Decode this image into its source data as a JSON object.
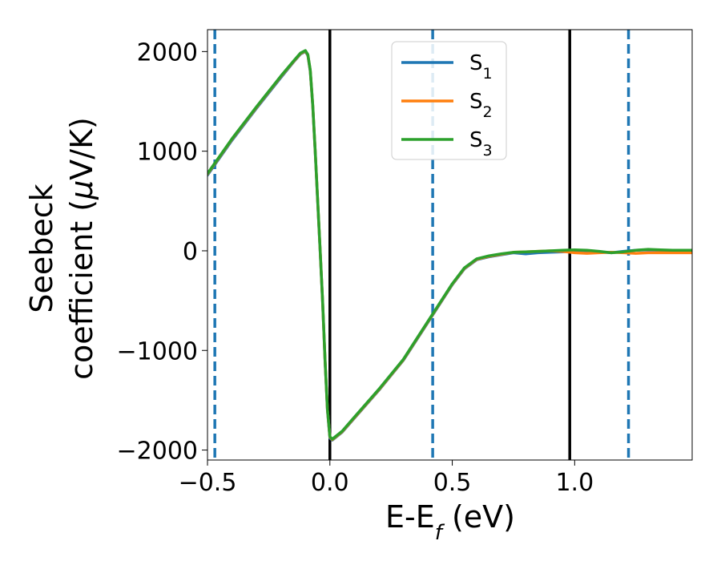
{
  "chart_data": {
    "type": "line",
    "xlabel": "E-E",
    "xlabel_sub": "f",
    "xlabel_unit": " (eV)",
    "ylabel_line1": "Seebeck",
    "ylabel_line2": "coefficient  (",
    "ylabel_mu": "μ",
    "ylabel_unit": "V/K)",
    "xlim": [
      -0.5,
      1.48
    ],
    "ylim": [
      -2100,
      2220
    ],
    "x_ticks": [
      -0.5,
      0.0,
      0.5,
      1.0
    ],
    "x_tick_labels": [
      "−0.5",
      "0.0",
      "0.5",
      "1.0"
    ],
    "y_ticks": [
      2000,
      1000,
      0,
      -1000,
      -2000
    ],
    "y_tick_labels": [
      "2000",
      "1000",
      "0",
      "−1000",
      "−2000"
    ],
    "grid": false,
    "legend_position": "top-center",
    "vertical_lines": [
      {
        "x": -0.47,
        "style": "dashed",
        "color": "#1f77b4"
      },
      {
        "x": 0.0,
        "style": "solid",
        "color": "#000000"
      },
      {
        "x": 0.42,
        "style": "dashed",
        "color": "#1f77b4"
      },
      {
        "x": 0.98,
        "style": "solid",
        "color": "#000000"
      },
      {
        "x": 1.22,
        "style": "dashed",
        "color": "#1f77b4"
      }
    ],
    "series": [
      {
        "name": "S",
        "subscript": "1",
        "color": "#1f77b4",
        "points": [
          [
            -0.5,
            760
          ],
          [
            -0.4,
            1110
          ],
          [
            -0.3,
            1430
          ],
          [
            -0.2,
            1740
          ],
          [
            -0.15,
            1890
          ],
          [
            -0.12,
            1975
          ],
          [
            -0.1,
            2000
          ],
          [
            -0.09,
            1960
          ],
          [
            -0.08,
            1800
          ],
          [
            -0.07,
            1450
          ],
          [
            -0.06,
            1000
          ],
          [
            -0.05,
            500
          ],
          [
            -0.04,
            0
          ],
          [
            -0.03,
            -500
          ],
          [
            -0.02,
            -1100
          ],
          [
            -0.01,
            -1600
          ],
          [
            0.0,
            -1880
          ],
          [
            0.01,
            -1900
          ],
          [
            0.05,
            -1820
          ],
          [
            0.1,
            -1680
          ],
          [
            0.2,
            -1400
          ],
          [
            0.3,
            -1100
          ],
          [
            0.4,
            -720
          ],
          [
            0.5,
            -340
          ],
          [
            0.55,
            -180
          ],
          [
            0.6,
            -90
          ],
          [
            0.65,
            -60
          ],
          [
            0.7,
            -40
          ],
          [
            0.75,
            -20
          ],
          [
            0.8,
            -30
          ],
          [
            0.85,
            -20
          ],
          [
            0.9,
            -15
          ],
          [
            0.95,
            -10
          ],
          [
            1.0,
            -5
          ],
          [
            1.05,
            -5
          ],
          [
            1.1,
            -10
          ],
          [
            1.15,
            -20
          ],
          [
            1.2,
            -5
          ],
          [
            1.25,
            5
          ],
          [
            1.3,
            10
          ],
          [
            1.35,
            5
          ],
          [
            1.4,
            0
          ],
          [
            1.48,
            0
          ]
        ]
      },
      {
        "name": "S",
        "subscript": "2",
        "color": "#ff7f0e",
        "points": [
          [
            -0.5,
            770
          ],
          [
            -0.4,
            1120
          ],
          [
            -0.3,
            1440
          ],
          [
            -0.2,
            1750
          ],
          [
            -0.15,
            1895
          ],
          [
            -0.12,
            1980
          ],
          [
            -0.1,
            2005
          ],
          [
            -0.09,
            1965
          ],
          [
            -0.08,
            1810
          ],
          [
            -0.07,
            1460
          ],
          [
            -0.06,
            1010
          ],
          [
            -0.05,
            510
          ],
          [
            -0.04,
            10
          ],
          [
            -0.03,
            -490
          ],
          [
            -0.02,
            -1090
          ],
          [
            -0.01,
            -1590
          ],
          [
            0.0,
            -1870
          ],
          [
            0.01,
            -1895
          ],
          [
            0.05,
            -1815
          ],
          [
            0.1,
            -1675
          ],
          [
            0.2,
            -1395
          ],
          [
            0.3,
            -1095
          ],
          [
            0.4,
            -715
          ],
          [
            0.5,
            -335
          ],
          [
            0.55,
            -175
          ],
          [
            0.6,
            -85
          ],
          [
            0.65,
            -55
          ],
          [
            0.7,
            -35
          ],
          [
            0.75,
            -15
          ],
          [
            0.8,
            -10
          ],
          [
            0.85,
            -5
          ],
          [
            0.9,
            0
          ],
          [
            0.95,
            -5
          ],
          [
            1.0,
            -20
          ],
          [
            1.05,
            -25
          ],
          [
            1.1,
            -20
          ],
          [
            1.15,
            -15
          ],
          [
            1.2,
            -20
          ],
          [
            1.25,
            -25
          ],
          [
            1.3,
            -20
          ],
          [
            1.35,
            -20
          ],
          [
            1.4,
            -20
          ],
          [
            1.48,
            -20
          ]
        ]
      },
      {
        "name": "S",
        "subscript": "3",
        "color": "#2ca02c",
        "points": [
          [
            -0.5,
            775
          ],
          [
            -0.4,
            1125
          ],
          [
            -0.3,
            1445
          ],
          [
            -0.2,
            1755
          ],
          [
            -0.15,
            1900
          ],
          [
            -0.12,
            1985
          ],
          [
            -0.1,
            2010
          ],
          [
            -0.09,
            1970
          ],
          [
            -0.08,
            1815
          ],
          [
            -0.07,
            1465
          ],
          [
            -0.06,
            1015
          ],
          [
            -0.05,
            515
          ],
          [
            -0.04,
            15
          ],
          [
            -0.03,
            -485
          ],
          [
            -0.02,
            -1085
          ],
          [
            -0.01,
            -1585
          ],
          [
            0.0,
            -1865
          ],
          [
            0.01,
            -1890
          ],
          [
            0.05,
            -1810
          ],
          [
            0.1,
            -1670
          ],
          [
            0.2,
            -1390
          ],
          [
            0.3,
            -1090
          ],
          [
            0.4,
            -710
          ],
          [
            0.5,
            -330
          ],
          [
            0.55,
            -170
          ],
          [
            0.6,
            -80
          ],
          [
            0.65,
            -50
          ],
          [
            0.7,
            -30
          ],
          [
            0.75,
            -15
          ],
          [
            0.8,
            -10
          ],
          [
            0.85,
            -5
          ],
          [
            0.9,
            0
          ],
          [
            0.95,
            5
          ],
          [
            1.0,
            10
          ],
          [
            1.05,
            5
          ],
          [
            1.1,
            -5
          ],
          [
            1.15,
            -20
          ],
          [
            1.2,
            -10
          ],
          [
            1.25,
            5
          ],
          [
            1.3,
            15
          ],
          [
            1.35,
            10
          ],
          [
            1.4,
            5
          ],
          [
            1.48,
            5
          ]
        ]
      }
    ]
  }
}
